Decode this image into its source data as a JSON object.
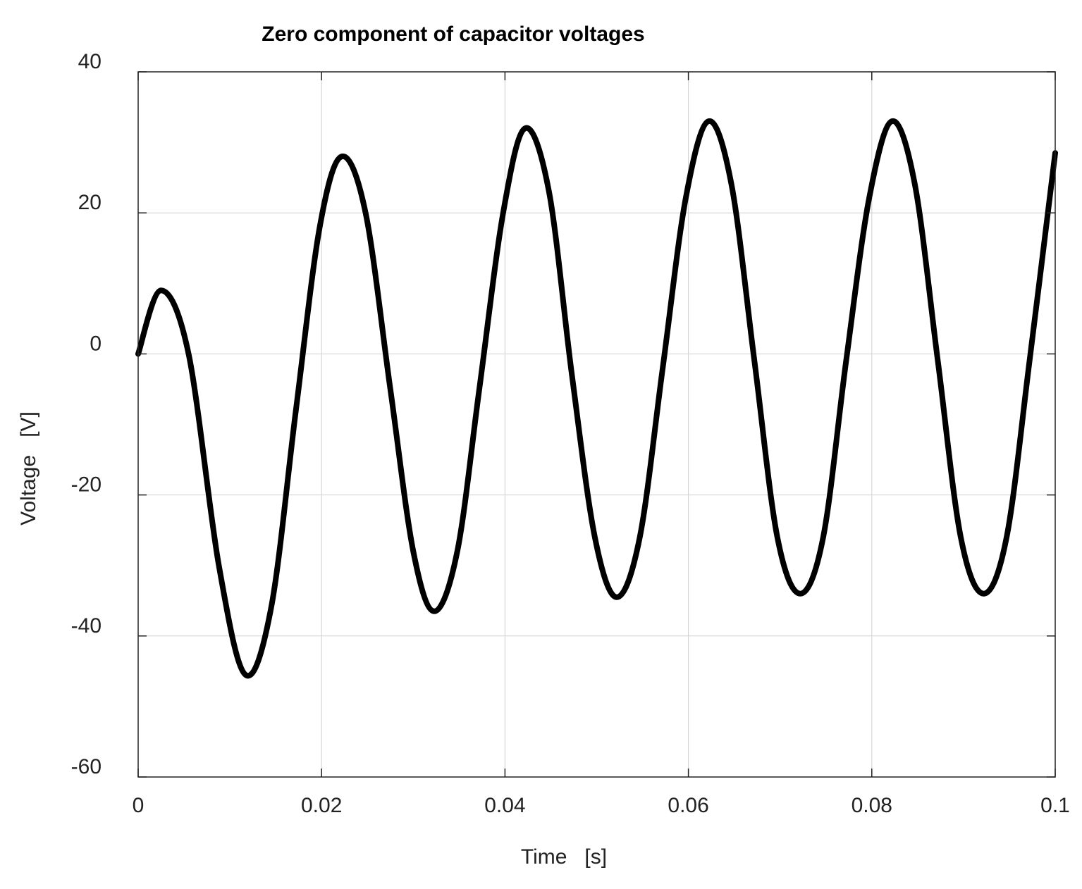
{
  "chart_data": {
    "type": "line",
    "title": "Zero component of capacitor voltages",
    "xlabel": "Time   [s]",
    "ylabel": "Voltage   [V]",
    "xlim": [
      0,
      0.1
    ],
    "ylim": [
      -60,
      40
    ],
    "xticks": [
      0,
      0.02,
      0.04,
      0.06,
      0.08,
      0.1
    ],
    "xtick_labels": [
      "0",
      "0.02",
      "0.04",
      "0.06",
      "0.08",
      "0.1"
    ],
    "yticks": [
      -60,
      -40,
      -20,
      0,
      20,
      40
    ],
    "ytick_labels": [
      "-60",
      "-40",
      "-20",
      "0",
      "20",
      "40"
    ],
    "grid": true,
    "series": [
      {
        "color": "#000000",
        "points": [
          [
            0.0,
            0.0
          ],
          [
            0.0025,
            9.0
          ],
          [
            0.0055,
            0.0
          ],
          [
            0.0088,
            -30.0
          ],
          [
            0.0117,
            -45.5
          ],
          [
            0.0145,
            -36.0
          ],
          [
            0.0172,
            -8.0
          ],
          [
            0.0198,
            18.0
          ],
          [
            0.0222,
            28.0
          ],
          [
            0.0248,
            20.0
          ],
          [
            0.0275,
            -5.0
          ],
          [
            0.03,
            -28.0
          ],
          [
            0.0323,
            -36.5
          ],
          [
            0.0348,
            -28.0
          ],
          [
            0.0372,
            -5.0
          ],
          [
            0.0398,
            20.0
          ],
          [
            0.0422,
            32.0
          ],
          [
            0.0448,
            23.0
          ],
          [
            0.0473,
            -3.0
          ],
          [
            0.0498,
            -26.0
          ],
          [
            0.0522,
            -34.5
          ],
          [
            0.0547,
            -26.0
          ],
          [
            0.0572,
            -2.0
          ],
          [
            0.0597,
            22.0
          ],
          [
            0.0622,
            33.0
          ],
          [
            0.0647,
            24.0
          ],
          [
            0.0672,
            -1.0
          ],
          [
            0.0697,
            -26.0
          ],
          [
            0.0722,
            -34.0
          ],
          [
            0.0747,
            -26.0
          ],
          [
            0.0772,
            -1.0
          ],
          [
            0.0797,
            22.0
          ],
          [
            0.0822,
            33.0
          ],
          [
            0.0847,
            24.0
          ],
          [
            0.0872,
            -1.0
          ],
          [
            0.0897,
            -26.0
          ],
          [
            0.0922,
            -34.0
          ],
          [
            0.0947,
            -26.0
          ],
          [
            0.0972,
            -1.0
          ],
          [
            0.1,
            28.5
          ]
        ]
      }
    ]
  }
}
